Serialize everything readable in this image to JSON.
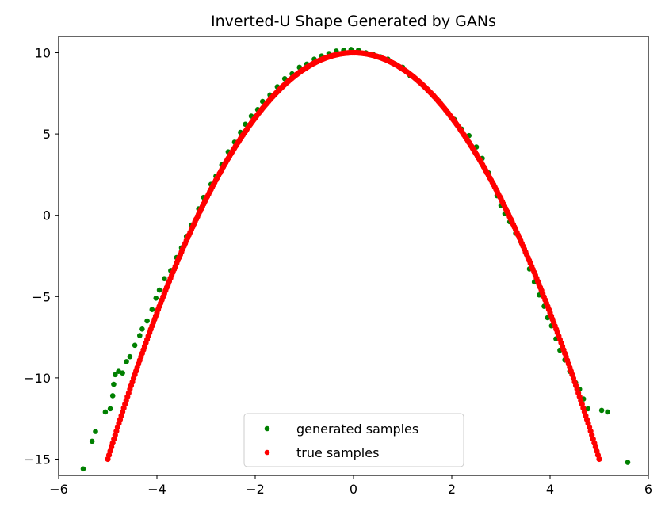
{
  "chart_data": {
    "type": "scatter",
    "title": "Inverted-U Shape Generated by GANs",
    "xlabel": "",
    "ylabel": "",
    "xlim": [
      -6,
      6
    ],
    "ylim": [
      -16,
      11
    ],
    "xticks": [
      -6,
      -4,
      -2,
      0,
      2,
      4,
      6
    ],
    "yticks": [
      -15,
      -10,
      -5,
      0,
      5,
      10
    ],
    "xtick_labels": [
      "−6",
      "−4",
      "−2",
      "0",
      "2",
      "4",
      "6"
    ],
    "ytick_labels": [
      "−15",
      "−10",
      "−5",
      "0",
      "5",
      "10"
    ],
    "grid": false,
    "legend_position": "bottom-center",
    "series": [
      {
        "name": "generated samples",
        "color": "#008000",
        "marker": "circle",
        "points": [
          [
            -5.5,
            -15.6
          ],
          [
            -5.32,
            -13.9
          ],
          [
            -5.25,
            -13.3
          ],
          [
            -5.05,
            -12.1
          ],
          [
            -4.95,
            -11.9
          ],
          [
            -4.9,
            -11.1
          ],
          [
            -4.88,
            -10.4
          ],
          [
            -4.85,
            -9.8
          ],
          [
            -4.78,
            -9.6
          ],
          [
            -4.7,
            -9.7
          ],
          [
            -4.62,
            -9.0
          ],
          [
            -4.55,
            -8.7
          ],
          [
            -4.45,
            -8.0
          ],
          [
            -4.35,
            -7.4
          ],
          [
            -4.3,
            -7.0
          ],
          [
            -4.2,
            -6.5
          ],
          [
            -4.1,
            -5.8
          ],
          [
            -4.02,
            -5.1
          ],
          [
            -3.95,
            -4.6
          ],
          [
            -3.85,
            -3.9
          ],
          [
            -3.72,
            -3.4
          ],
          [
            -3.6,
            -2.6
          ],
          [
            -3.5,
            -2.0
          ],
          [
            -3.4,
            -1.3
          ],
          [
            -3.3,
            -0.6
          ],
          [
            -3.15,
            0.4
          ],
          [
            -3.05,
            1.1
          ],
          [
            -2.9,
            1.9
          ],
          [
            -2.8,
            2.4
          ],
          [
            -2.68,
            3.1
          ],
          [
            -2.55,
            3.9
          ],
          [
            -2.42,
            4.5
          ],
          [
            -2.3,
            5.1
          ],
          [
            -2.2,
            5.6
          ],
          [
            -2.08,
            6.1
          ],
          [
            -1.95,
            6.5
          ],
          [
            -1.85,
            7.0
          ],
          [
            -1.7,
            7.4
          ],
          [
            -1.55,
            7.9
          ],
          [
            -1.4,
            8.4
          ],
          [
            -1.25,
            8.7
          ],
          [
            -1.1,
            9.1
          ],
          [
            -0.95,
            9.3
          ],
          [
            -0.8,
            9.6
          ],
          [
            -0.65,
            9.8
          ],
          [
            -0.5,
            9.95
          ],
          [
            -0.35,
            10.1
          ],
          [
            -0.2,
            10.15
          ],
          [
            -0.05,
            10.2
          ],
          [
            0.1,
            10.15
          ],
          [
            0.25,
            10.0
          ],
          [
            0.4,
            9.9
          ],
          [
            0.55,
            9.75
          ],
          [
            0.7,
            9.6
          ],
          [
            0.85,
            9.3
          ],
          [
            1.0,
            9.1
          ],
          [
            1.15,
            8.6
          ],
          [
            1.3,
            8.3
          ],
          [
            1.45,
            7.9
          ],
          [
            1.6,
            7.4
          ],
          [
            1.75,
            7.0
          ],
          [
            1.9,
            6.4
          ],
          [
            2.05,
            5.9
          ],
          [
            2.2,
            5.3
          ],
          [
            2.35,
            4.9
          ],
          [
            2.5,
            4.2
          ],
          [
            2.62,
            3.5
          ],
          [
            2.75,
            2.6
          ],
          [
            2.85,
            1.9
          ],
          [
            2.92,
            1.2
          ],
          [
            3.0,
            0.6
          ],
          [
            3.08,
            0.1
          ],
          [
            3.18,
            -0.4
          ],
          [
            3.3,
            -1.1
          ],
          [
            3.4,
            -1.6
          ],
          [
            3.5,
            -2.3
          ],
          [
            3.58,
            -3.3
          ],
          [
            3.68,
            -4.1
          ],
          [
            3.78,
            -4.9
          ],
          [
            3.88,
            -5.6
          ],
          [
            3.95,
            -6.3
          ],
          [
            4.03,
            -6.8
          ],
          [
            4.12,
            -7.6
          ],
          [
            4.2,
            -8.3
          ],
          [
            4.3,
            -8.9
          ],
          [
            4.4,
            -9.6
          ],
          [
            4.52,
            -10.3
          ],
          [
            4.6,
            -10.7
          ],
          [
            4.68,
            -11.3
          ],
          [
            4.77,
            -11.9
          ],
          [
            5.05,
            -12.0
          ],
          [
            5.17,
            -12.1
          ],
          [
            5.58,
            -15.2
          ]
        ]
      },
      {
        "name": "true samples",
        "color": "#ff0000",
        "marker": "circle",
        "function": "y = 10 - x^2",
        "x_range": [
          -5,
          5
        ]
      }
    ]
  }
}
